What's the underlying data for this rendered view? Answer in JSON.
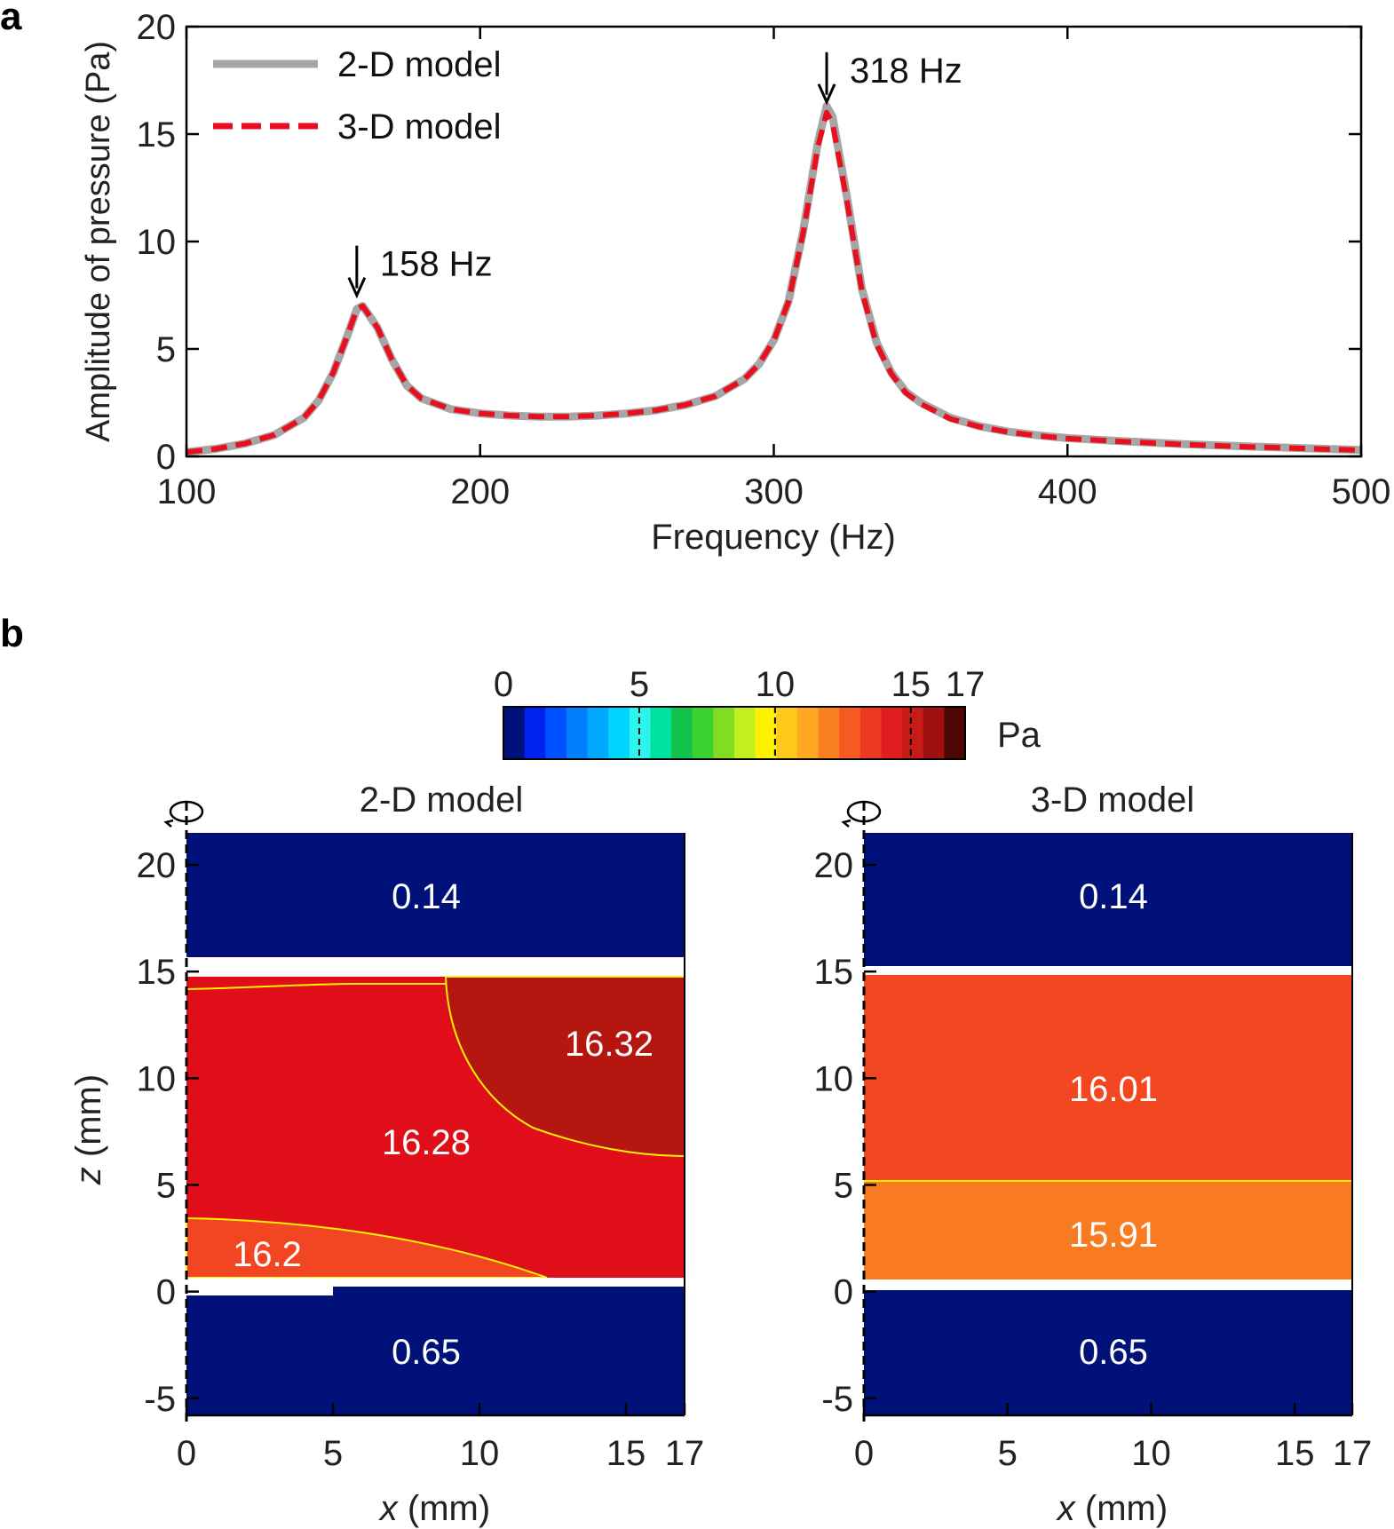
{
  "panel_labels": {
    "a": "a",
    "b": "b"
  },
  "colors": {
    "series_2d": "#a6a6a6",
    "series_3d": "#e8101e",
    "field_low": "#00127a",
    "contour": "#fff200"
  },
  "chart_data": [
    {
      "type": "line",
      "xlabel": "Frequency (Hz)",
      "ylabel": "Amplitude of pressure (Pa)",
      "xlim": [
        100,
        500
      ],
      "ylim": [
        0,
        20
      ],
      "xticks": [
        "100",
        "200",
        "300",
        "400",
        "500"
      ],
      "yticks": [
        "0",
        "5",
        "10",
        "15",
        "20"
      ],
      "grid": false,
      "legend": "top-left",
      "annotations": [
        {
          "text": "158 Hz",
          "x": 158,
          "y": 7.0
        },
        {
          "text": "318 Hz",
          "x": 318,
          "y": 16.0
        }
      ],
      "x": [
        100,
        110,
        120,
        130,
        140,
        145,
        150,
        155,
        158,
        160,
        165,
        170,
        175,
        180,
        190,
        200,
        210,
        220,
        230,
        240,
        250,
        260,
        270,
        280,
        290,
        295,
        300,
        305,
        310,
        315,
        318,
        320,
        325,
        330,
        335,
        340,
        345,
        350,
        360,
        370,
        380,
        390,
        400,
        420,
        440,
        460,
        480,
        500
      ],
      "series": [
        {
          "name": "2-D model",
          "values": [
            0.2,
            0.35,
            0.6,
            1.0,
            1.8,
            2.6,
            3.9,
            5.7,
            6.85,
            7.0,
            6.0,
            4.5,
            3.3,
            2.7,
            2.2,
            2.0,
            1.9,
            1.85,
            1.85,
            1.9,
            2.0,
            2.15,
            2.4,
            2.8,
            3.6,
            4.3,
            5.4,
            7.2,
            10.5,
            14.6,
            16.3,
            15.8,
            12.0,
            7.8,
            5.3,
            3.9,
            3.0,
            2.5,
            1.8,
            1.4,
            1.15,
            0.98,
            0.85,
            0.7,
            0.57,
            0.47,
            0.38,
            0.3
          ]
        },
        {
          "name": "3-D model",
          "values": [
            0.2,
            0.35,
            0.6,
            1.0,
            1.8,
            2.6,
            3.9,
            5.7,
            6.85,
            7.0,
            6.0,
            4.5,
            3.3,
            2.7,
            2.2,
            2.0,
            1.9,
            1.85,
            1.85,
            1.9,
            2.0,
            2.15,
            2.4,
            2.8,
            3.6,
            4.3,
            5.4,
            7.2,
            10.4,
            14.4,
            16.0,
            15.5,
            11.8,
            7.7,
            5.2,
            3.85,
            2.95,
            2.45,
            1.75,
            1.38,
            1.13,
            0.96,
            0.83,
            0.68,
            0.55,
            0.45,
            0.37,
            0.29
          ]
        }
      ]
    },
    {
      "type": "heatmap",
      "colorbar": {
        "unit": "Pa",
        "range": [
          0,
          17
        ],
        "ticks": [
          {
            "label": "0",
            "value": 0
          },
          {
            "label": "5",
            "value": 5
          },
          {
            "label": "10",
            "value": 10
          },
          {
            "label": "15",
            "value": 15
          },
          {
            "label": "17",
            "value": 17
          }
        ],
        "levels": [
          "#00127a",
          "#0022ee",
          "#0050ff",
          "#0080ff",
          "#00a8ff",
          "#00d4ff",
          "#2cf5ef",
          "#00e0a0",
          "#13c24d",
          "#3bd12e",
          "#80dd22",
          "#c3ee1f",
          "#fff200",
          "#ffc81a",
          "#ffa821",
          "#fb8020",
          "#f65a22",
          "#ef3a23",
          "#e21d1f",
          "#c81b17",
          "#a01010",
          "#4c0606"
        ]
      },
      "xlabel_var": "x",
      "xlabel_unit": " (mm)",
      "ylabel_var": "z",
      "ylabel_unit": " (mm)",
      "xlim": [
        0,
        17
      ],
      "ylim": [
        -5.8,
        21.5
      ],
      "xticks": [
        "0",
        "5",
        "10",
        "15",
        "17"
      ],
      "yticks": [
        "-5",
        "0",
        "5",
        "10",
        "15",
        "20"
      ],
      "panels": [
        {
          "title": "2-D model",
          "regions": [
            {
              "label": "0.14",
              "value": 0.14,
              "color": "#00127a"
            },
            {
              "label": "16.32",
              "value": 16.32,
              "color": "#b5160f"
            },
            {
              "label": "16.28",
              "value": 16.28,
              "color": "#e00e19"
            },
            {
              "label": "16.2",
              "value": 16.2,
              "color": "#f24622"
            },
            {
              "label": "0.65",
              "value": 0.65,
              "color": "#00127a"
            }
          ]
        },
        {
          "title": "3-D model",
          "regions": [
            {
              "label": "0.14",
              "value": 0.14,
              "color": "#00127a"
            },
            {
              "label": "16.01",
              "value": 16.01,
              "color": "#f34722"
            },
            {
              "label": "15.91",
              "value": 15.91,
              "color": "#f87b22"
            },
            {
              "label": "0.65",
              "value": 0.65,
              "color": "#00127a"
            }
          ]
        }
      ]
    }
  ]
}
